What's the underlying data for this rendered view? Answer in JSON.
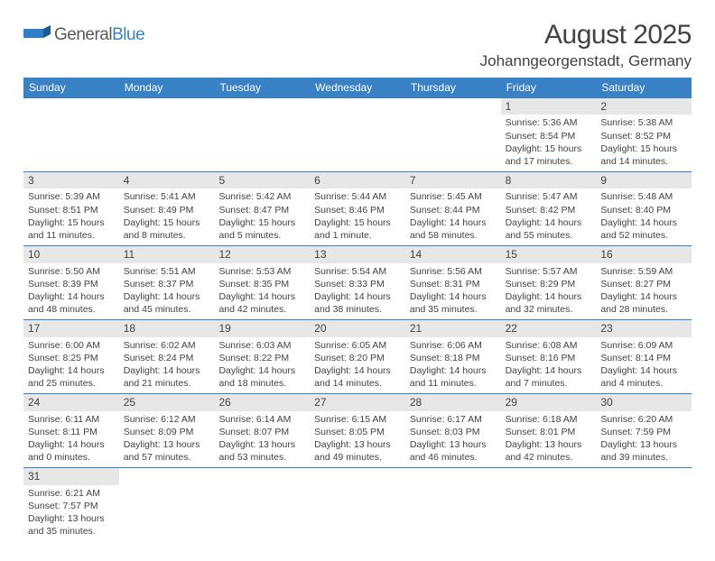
{
  "logo": {
    "text1": "General",
    "text2": "Blue"
  },
  "title": "August 2025",
  "location": "Johanngeorgenstadt, Germany",
  "colors": {
    "header_bg": "#3981c5",
    "header_text": "#ffffff",
    "daynum_bg": "#e7e7e7",
    "text": "#424242",
    "rule": "#3981c5"
  },
  "weekdays": [
    "Sunday",
    "Monday",
    "Tuesday",
    "Wednesday",
    "Thursday",
    "Friday",
    "Saturday"
  ],
  "weeks": [
    [
      {
        "empty": true
      },
      {
        "empty": true
      },
      {
        "empty": true
      },
      {
        "empty": true
      },
      {
        "empty": true
      },
      {
        "n": "1",
        "sr": "Sunrise: 5:36 AM",
        "ss": "Sunset: 8:54 PM",
        "d1": "Daylight: 15 hours",
        "d2": "and 17 minutes."
      },
      {
        "n": "2",
        "sr": "Sunrise: 5:38 AM",
        "ss": "Sunset: 8:52 PM",
        "d1": "Daylight: 15 hours",
        "d2": "and 14 minutes."
      }
    ],
    [
      {
        "n": "3",
        "sr": "Sunrise: 5:39 AM",
        "ss": "Sunset: 8:51 PM",
        "d1": "Daylight: 15 hours",
        "d2": "and 11 minutes."
      },
      {
        "n": "4",
        "sr": "Sunrise: 5:41 AM",
        "ss": "Sunset: 8:49 PM",
        "d1": "Daylight: 15 hours",
        "d2": "and 8 minutes."
      },
      {
        "n": "5",
        "sr": "Sunrise: 5:42 AM",
        "ss": "Sunset: 8:47 PM",
        "d1": "Daylight: 15 hours",
        "d2": "and 5 minutes."
      },
      {
        "n": "6",
        "sr": "Sunrise: 5:44 AM",
        "ss": "Sunset: 8:46 PM",
        "d1": "Daylight: 15 hours",
        "d2": "and 1 minute."
      },
      {
        "n": "7",
        "sr": "Sunrise: 5:45 AM",
        "ss": "Sunset: 8:44 PM",
        "d1": "Daylight: 14 hours",
        "d2": "and 58 minutes."
      },
      {
        "n": "8",
        "sr": "Sunrise: 5:47 AM",
        "ss": "Sunset: 8:42 PM",
        "d1": "Daylight: 14 hours",
        "d2": "and 55 minutes."
      },
      {
        "n": "9",
        "sr": "Sunrise: 5:48 AM",
        "ss": "Sunset: 8:40 PM",
        "d1": "Daylight: 14 hours",
        "d2": "and 52 minutes."
      }
    ],
    [
      {
        "n": "10",
        "sr": "Sunrise: 5:50 AM",
        "ss": "Sunset: 8:39 PM",
        "d1": "Daylight: 14 hours",
        "d2": "and 48 minutes."
      },
      {
        "n": "11",
        "sr": "Sunrise: 5:51 AM",
        "ss": "Sunset: 8:37 PM",
        "d1": "Daylight: 14 hours",
        "d2": "and 45 minutes."
      },
      {
        "n": "12",
        "sr": "Sunrise: 5:53 AM",
        "ss": "Sunset: 8:35 PM",
        "d1": "Daylight: 14 hours",
        "d2": "and 42 minutes."
      },
      {
        "n": "13",
        "sr": "Sunrise: 5:54 AM",
        "ss": "Sunset: 8:33 PM",
        "d1": "Daylight: 14 hours",
        "d2": "and 38 minutes."
      },
      {
        "n": "14",
        "sr": "Sunrise: 5:56 AM",
        "ss": "Sunset: 8:31 PM",
        "d1": "Daylight: 14 hours",
        "d2": "and 35 minutes."
      },
      {
        "n": "15",
        "sr": "Sunrise: 5:57 AM",
        "ss": "Sunset: 8:29 PM",
        "d1": "Daylight: 14 hours",
        "d2": "and 32 minutes."
      },
      {
        "n": "16",
        "sr": "Sunrise: 5:59 AM",
        "ss": "Sunset: 8:27 PM",
        "d1": "Daylight: 14 hours",
        "d2": "and 28 minutes."
      }
    ],
    [
      {
        "n": "17",
        "sr": "Sunrise: 6:00 AM",
        "ss": "Sunset: 8:25 PM",
        "d1": "Daylight: 14 hours",
        "d2": "and 25 minutes."
      },
      {
        "n": "18",
        "sr": "Sunrise: 6:02 AM",
        "ss": "Sunset: 8:24 PM",
        "d1": "Daylight: 14 hours",
        "d2": "and 21 minutes."
      },
      {
        "n": "19",
        "sr": "Sunrise: 6:03 AM",
        "ss": "Sunset: 8:22 PM",
        "d1": "Daylight: 14 hours",
        "d2": "and 18 minutes."
      },
      {
        "n": "20",
        "sr": "Sunrise: 6:05 AM",
        "ss": "Sunset: 8:20 PM",
        "d1": "Daylight: 14 hours",
        "d2": "and 14 minutes."
      },
      {
        "n": "21",
        "sr": "Sunrise: 6:06 AM",
        "ss": "Sunset: 8:18 PM",
        "d1": "Daylight: 14 hours",
        "d2": "and 11 minutes."
      },
      {
        "n": "22",
        "sr": "Sunrise: 6:08 AM",
        "ss": "Sunset: 8:16 PM",
        "d1": "Daylight: 14 hours",
        "d2": "and 7 minutes."
      },
      {
        "n": "23",
        "sr": "Sunrise: 6:09 AM",
        "ss": "Sunset: 8:14 PM",
        "d1": "Daylight: 14 hours",
        "d2": "and 4 minutes."
      }
    ],
    [
      {
        "n": "24",
        "sr": "Sunrise: 6:11 AM",
        "ss": "Sunset: 8:11 PM",
        "d1": "Daylight: 14 hours",
        "d2": "and 0 minutes."
      },
      {
        "n": "25",
        "sr": "Sunrise: 6:12 AM",
        "ss": "Sunset: 8:09 PM",
        "d1": "Daylight: 13 hours",
        "d2": "and 57 minutes."
      },
      {
        "n": "26",
        "sr": "Sunrise: 6:14 AM",
        "ss": "Sunset: 8:07 PM",
        "d1": "Daylight: 13 hours",
        "d2": "and 53 minutes."
      },
      {
        "n": "27",
        "sr": "Sunrise: 6:15 AM",
        "ss": "Sunset: 8:05 PM",
        "d1": "Daylight: 13 hours",
        "d2": "and 49 minutes."
      },
      {
        "n": "28",
        "sr": "Sunrise: 6:17 AM",
        "ss": "Sunset: 8:03 PM",
        "d1": "Daylight: 13 hours",
        "d2": "and 46 minutes."
      },
      {
        "n": "29",
        "sr": "Sunrise: 6:18 AM",
        "ss": "Sunset: 8:01 PM",
        "d1": "Daylight: 13 hours",
        "d2": "and 42 minutes."
      },
      {
        "n": "30",
        "sr": "Sunrise: 6:20 AM",
        "ss": "Sunset: 7:59 PM",
        "d1": "Daylight: 13 hours",
        "d2": "and 39 minutes."
      }
    ],
    [
      {
        "n": "31",
        "sr": "Sunrise: 6:21 AM",
        "ss": "Sunset: 7:57 PM",
        "d1": "Daylight: 13 hours",
        "d2": "and 35 minutes."
      },
      {
        "empty": true
      },
      {
        "empty": true
      },
      {
        "empty": true
      },
      {
        "empty": true
      },
      {
        "empty": true
      },
      {
        "empty": true
      }
    ]
  ]
}
